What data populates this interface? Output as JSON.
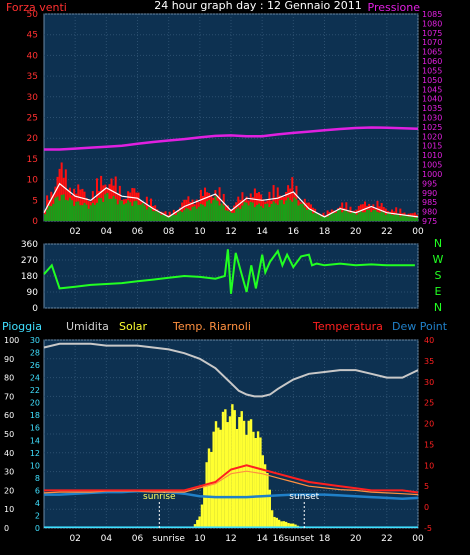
{
  "header": {
    "left_label": "Forza venti",
    "title": "24 hour graph day : 12 Gennaio 2011",
    "right_label": "Pressione"
  },
  "colors": {
    "bg": "#000000",
    "plot": "#0d3151",
    "grid": "#2c5070",
    "wind_axis": "#ff3030",
    "pressure": "#e020e0",
    "gust": "#ff1010",
    "avg_wind": "#18a018",
    "wind_line": "#ffffff",
    "direction": "#22ff22",
    "humidity": "#c8c8c8",
    "temperature": "#ff2020",
    "dewpoint": "#2080c8",
    "solar": "#ffff30",
    "rain": "#40e0ff",
    "sun_marker": "#ffffff",
    "axis_white": "#ffffff"
  },
  "legend": {
    "rain": "Pioggia",
    "humidity": "Umidita",
    "solar": "Solar",
    "temp_apparent": "Temp. Riarnoli",
    "temperature": "Temperatura",
    "dewpoint": "Dew Point"
  },
  "compass": [
    "N",
    "W",
    "S",
    "E",
    "N"
  ],
  "annotations": {
    "sunrise": "sunrise",
    "sunset": "sunset"
  },
  "chart_data": [
    {
      "type": "bar",
      "title": "24 hour graph day : 12 Gennaio 2011",
      "x_ticks": [
        "02",
        "04",
        "06",
        "08",
        "10",
        "12",
        "14",
        "16",
        "18",
        "20",
        "22",
        "00"
      ],
      "x_range_hours": [
        0,
        24
      ],
      "ylabel_left": "Forza venti",
      "ylim_left": [
        0,
        50
      ],
      "y_ticks_left": [
        0,
        5,
        10,
        15,
        20,
        25,
        30,
        35,
        40,
        45,
        50
      ],
      "ylabel_right": "Pressione",
      "ylim_right": [
        975,
        1085
      ],
      "y_ticks_right": [
        975,
        980,
        985,
        990,
        995,
        1000,
        1005,
        1010,
        1015,
        1020,
        1025,
        1030,
        1035,
        1040,
        1045,
        1050,
        1055,
        1060,
        1065,
        1070,
        1075,
        1080,
        1085
      ],
      "series": [
        {
          "name": "Pressione",
          "axis": "right",
          "x": [
            0,
            1,
            2,
            3,
            4,
            5,
            6,
            7,
            8,
            9,
            10,
            11,
            12,
            13,
            14,
            15,
            16,
            17,
            18,
            19,
            20,
            21,
            22,
            23,
            24
          ],
          "values": [
            1013,
            1013,
            1013.5,
            1014,
            1014.5,
            1015,
            1016,
            1017,
            1017.8,
            1018.5,
            1019.4,
            1020.2,
            1020.5,
            1020,
            1020,
            1021,
            1021.8,
            1022.5,
            1023.2,
            1023.9,
            1024.4,
            1024.7,
            1024.6,
            1024.3,
            1024
          ]
        },
        {
          "axis": "left",
          "x": [
            0,
            1,
            2,
            3,
            4,
            5,
            6,
            7,
            8,
            9,
            10,
            11,
            12,
            13,
            14,
            15,
            16,
            17,
            18,
            19,
            20,
            21,
            22,
            23,
            24
          ],
          "values": [
            4,
            16,
            10,
            8,
            14,
            9,
            9,
            5,
            2,
            6,
            8,
            10,
            4,
            9,
            8,
            9,
            11,
            5,
            2,
            5,
            4,
            6,
            4,
            3,
            2
          ]
        },
        {
          "axis": "left",
          "x": [
            0,
            1,
            2,
            3,
            4,
            5,
            6,
            7,
            8,
            9,
            10,
            11,
            12,
            13,
            14,
            15,
            16,
            17,
            18,
            19,
            20,
            21,
            22,
            23,
            24
          ],
          "values": [
            2,
            7,
            5,
            4,
            7,
            5,
            5,
            3,
            1,
            3,
            4,
            6,
            2,
            5,
            4,
            5,
            6,
            3,
            1,
            3,
            2,
            3,
            2,
            1.5,
            1
          ]
        },
        {
          "axis": "left",
          "x": [
            0,
            1,
            2,
            3,
            4,
            5,
            6,
            7,
            8,
            9,
            10,
            11,
            12,
            13,
            14,
            15,
            16,
            17,
            18,
            19,
            20,
            21,
            22,
            23,
            24
          ],
          "values": [
            2,
            9,
            6,
            5,
            8,
            6,
            5.5,
            3,
            1,
            3.5,
            5,
            6.5,
            2.5,
            5.5,
            5,
            5.5,
            7,
            3,
            1,
            3,
            2,
            3.5,
            2,
            1.5,
            1
          ]
        }
      ]
    },
    {
      "type": "line",
      "ylabel_right": "N W S E N",
      "ylim": [
        0,
        360
      ],
      "y_ticks": [
        0,
        90,
        180,
        270,
        360
      ],
      "x_range_hours": [
        0,
        24
      ],
      "series": [
        {
          "x": [
            0,
            0.5,
            1,
            2,
            3,
            4,
            5,
            6,
            7,
            8,
            9,
            10,
            11,
            11.6,
            11.8,
            12,
            12.3,
            13,
            13.3,
            13.6,
            14,
            14.2,
            14.5,
            15,
            15.3,
            15.6,
            16,
            16.5,
            17,
            17.2,
            17.5,
            18,
            19,
            20,
            21,
            22,
            23,
            23.8
          ],
          "values": [
            190,
            240,
            110,
            120,
            130,
            135,
            140,
            150,
            160,
            170,
            180,
            175,
            165,
            180,
            330,
            80,
            310,
            90,
            240,
            110,
            300,
            200,
            260,
            320,
            240,
            300,
            230,
            290,
            300,
            240,
            250,
            240,
            250,
            240,
            245,
            240,
            240,
            240
          ]
        }
      ]
    },
    {
      "type": "line",
      "x_ticks": [
        "02",
        "04",
        "06",
        "sunrise",
        "10",
        "12",
        "14",
        "16sunset",
        "18",
        "20",
        "22",
        "00"
      ],
      "x_range_hours": [
        0,
        24
      ],
      "ylabel_left": "Umidita",
      "ylim_left": [
        0,
        100
      ],
      "y_ticks_left": [
        0,
        10,
        20,
        30,
        40,
        50,
        60,
        70,
        80,
        90,
        100
      ],
      "ylim_left_inner": [
        0,
        30
      ],
      "y_ticks_left_inner": [
        0,
        2,
        4,
        6,
        8,
        10,
        12,
        14,
        16,
        18,
        20,
        22,
        24,
        26,
        28,
        30
      ],
      "ylabel_right": "Temperatura",
      "ylim_right": [
        -5,
        40
      ],
      "y_ticks_right": [
        -5,
        0,
        5,
        10,
        15,
        20,
        25,
        30,
        35,
        40
      ],
      "sunrise_hour": 7.4,
      "sunset_hour": 16.7,
      "series": [
        {
          "name": "Umidita",
          "x": [
            0,
            1,
            2,
            3,
            4,
            5,
            6,
            7,
            8,
            9,
            10,
            11,
            12,
            12.5,
            13,
            13.5,
            14,
            14.5,
            15,
            16,
            17,
            18,
            19,
            20,
            21,
            22,
            23,
            24
          ],
          "values": [
            96,
            98,
            98,
            98,
            97,
            97,
            97,
            96,
            95,
            93,
            90,
            85,
            77,
            73,
            71,
            70,
            70,
            71,
            74,
            79,
            82,
            83,
            84,
            84,
            82,
            80,
            80,
            84
          ]
        },
        {
          "name": "Temperatura",
          "x": [
            0,
            1,
            2,
            3,
            4,
            5,
            6,
            7,
            8,
            9,
            10,
            11,
            12,
            13,
            14,
            15,
            16,
            17,
            18,
            19,
            20,
            21,
            22,
            23,
            24
          ],
          "values": [
            4,
            4,
            4,
            4,
            4,
            4,
            4,
            4,
            4,
            4,
            5,
            6,
            9,
            10,
            9,
            8,
            7,
            6,
            5.5,
            5,
            4.5,
            4,
            4,
            4,
            3.5
          ]
        },
        {
          "name": "Dew Point",
          "x": [
            0,
            1,
            2,
            3,
            4,
            5,
            6,
            7,
            8,
            9,
            10,
            11,
            12,
            13,
            14,
            15,
            16,
            17,
            18,
            19,
            20,
            21,
            22,
            23,
            24
          ],
          "values": [
            3,
            3,
            3.2,
            3.4,
            3.6,
            3.6,
            3.8,
            3.8,
            3.6,
            3.2,
            2.6,
            2.4,
            2.4,
            2.4,
            2.6,
            2.8,
            3,
            3,
            3,
            2.8,
            2.6,
            2.4,
            2.2,
            2,
            2.2
          ]
        },
        {
          "name": "Temp. Riarnoli",
          "x": [
            0,
            1,
            2,
            3,
            4,
            5,
            6,
            7,
            8,
            9,
            10,
            11,
            12,
            13,
            14,
            15,
            16,
            17,
            18,
            19,
            20,
            21,
            22,
            23,
            24
          ],
          "values": [
            3.4,
            3.6,
            3.6,
            3.6,
            3.8,
            3.8,
            3.8,
            3.6,
            3.6,
            3.6,
            4.6,
            5.6,
            8,
            8.6,
            8,
            7,
            6,
            5,
            4.6,
            4.2,
            4,
            3.6,
            3.4,
            3.2,
            3
          ]
        },
        {
          "name": "Solar",
          "x": [
            0,
            7.4,
            9.5,
            10.0,
            10.3,
            10.6,
            11,
            11.5,
            12,
            12.5,
            13,
            13.5,
            14,
            14.5,
            14.7,
            15,
            15.5,
            16,
            16.7,
            24
          ],
          "values": [
            0,
            0,
            0,
            2,
            8,
            14,
            17,
            19,
            20,
            19,
            18,
            17,
            14,
            6,
            2,
            1.5,
            1,
            0.7,
            0,
            0
          ]
        },
        {
          "name": "Pioggia",
          "x": [
            0,
            24
          ],
          "values": [
            0,
            0
          ]
        }
      ]
    }
  ]
}
